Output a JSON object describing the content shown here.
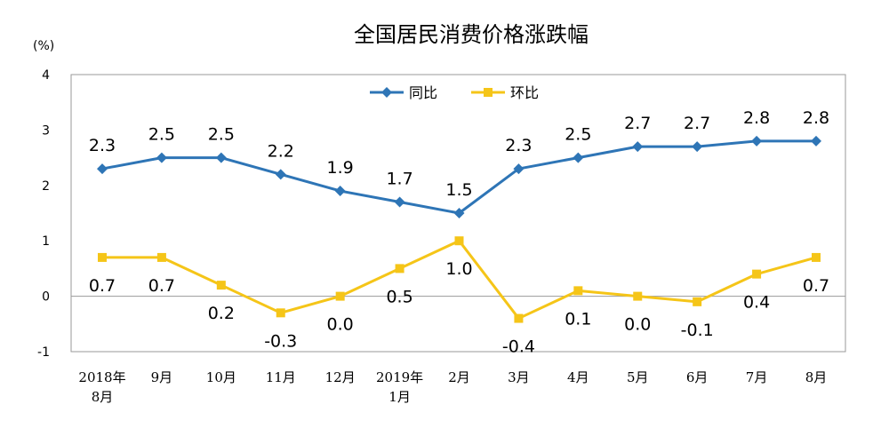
{
  "chart_data": {
    "type": "line",
    "title": "全国居民消费价格涨跌幅",
    "unit_label": "(%)",
    "categories": [
      [
        "2018年",
        "8月"
      ],
      [
        "9月"
      ],
      [
        "10月"
      ],
      [
        "11月"
      ],
      [
        "12月"
      ],
      [
        "2019年",
        "1月"
      ],
      [
        "2月"
      ],
      [
        "3月"
      ],
      [
        "4月"
      ],
      [
        "5月"
      ],
      [
        "6月"
      ],
      [
        "7月"
      ],
      [
        "8月"
      ]
    ],
    "ylim": [
      -1,
      4
    ],
    "yticks": [
      "-1",
      "0",
      "1",
      "2",
      "3",
      "4"
    ],
    "legend_position": "top-center",
    "series": [
      {
        "name": "同比",
        "color": "#2E75B6",
        "marker": "diamond",
        "values": [
          2.3,
          2.5,
          2.5,
          2.2,
          1.9,
          1.7,
          1.5,
          2.3,
          2.5,
          2.7,
          2.7,
          2.8,
          2.8
        ],
        "labels": [
          "2.3",
          "2.5",
          "2.5",
          "2.2",
          "1.9",
          "1.7",
          "1.5",
          "2.3",
          "2.5",
          "2.7",
          "2.7",
          "2.8",
          "2.8"
        ]
      },
      {
        "name": "环比",
        "color": "#F5C518",
        "marker": "square",
        "values": [
          0.7,
          0.7,
          0.2,
          -0.3,
          0.0,
          0.5,
          1.0,
          -0.4,
          0.1,
          0.0,
          -0.1,
          0.4,
          0.7
        ],
        "labels": [
          "0.7",
          "0.7",
          "0.2",
          "-0.3",
          "0.0",
          "0.5",
          "1.0",
          "-0.4",
          "0.1",
          "0.0",
          "-0.1",
          "0.4",
          "0.7"
        ]
      }
    ]
  }
}
